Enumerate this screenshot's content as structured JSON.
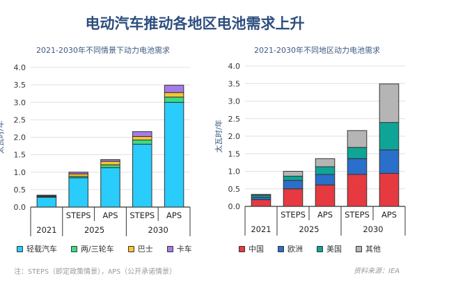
{
  "title": "电动汽车推动各地区电池需求上升",
  "note": "注：STEPS（即定政策情景），APS（公开承诺情景）",
  "source": "资料来源：IEA",
  "chart_data": [
    {
      "type": "bar",
      "stacked": true,
      "title": "2021-2030年不同情景下动力电池需求",
      "ylabel": "太瓦时/年",
      "ylim": [
        0,
        4.0
      ],
      "yticks": [
        "0.0",
        "0.5",
        "1.0",
        "1.5",
        "2.0",
        "2.5",
        "3.0",
        "3.5",
        "4.0"
      ],
      "grid": true,
      "legend": "bottom",
      "categories": [
        {
          "sub": "",
          "group": "2021"
        },
        {
          "sub": "STEPS",
          "group": "2025"
        },
        {
          "sub": "APS",
          "group": "2025"
        },
        {
          "sub": "STEPS",
          "group": "2030"
        },
        {
          "sub": "APS",
          "group": "2030"
        }
      ],
      "groups": [
        "2021",
        "2025",
        "2030"
      ],
      "series": [
        {
          "name": "轻载汽车",
          "color": "#29ccfa",
          "values": [
            0.28,
            0.84,
            1.13,
            1.8,
            3.0
          ]
        },
        {
          "name": "两/三轮车",
          "color": "#3ddc84",
          "values": [
            0.02,
            0.04,
            0.08,
            0.12,
            0.15
          ]
        },
        {
          "name": "巴士",
          "color": "#f7c531",
          "values": [
            0.02,
            0.07,
            0.1,
            0.1,
            0.13
          ]
        },
        {
          "name": "卡车",
          "color": "#a57be8",
          "values": [
            0.02,
            0.05,
            0.05,
            0.14,
            0.21
          ]
        }
      ]
    },
    {
      "type": "bar",
      "stacked": true,
      "title": "2021-2030年不同地区动力电池需求",
      "ylabel": "太瓦时/年",
      "ylim": [
        0,
        4.0
      ],
      "yticks": [
        "0.0",
        "0.5",
        "1.0",
        "1.5",
        "2.0",
        "2.5",
        "3.0",
        "3.5",
        "4.0"
      ],
      "grid": true,
      "legend": "bottom",
      "categories": [
        {
          "sub": "",
          "group": "2021"
        },
        {
          "sub": "STEPS",
          "group": "2025"
        },
        {
          "sub": "APS",
          "group": "2025"
        },
        {
          "sub": "STEPS",
          "group": "2030"
        },
        {
          "sub": "APS",
          "group": "2030"
        }
      ],
      "groups": [
        "2021",
        "2025",
        "2030"
      ],
      "series": [
        {
          "name": "中国",
          "color": "#e63a40",
          "values": [
            0.19,
            0.5,
            0.61,
            0.91,
            0.94
          ]
        },
        {
          "name": "欧洲",
          "color": "#2a6fc9",
          "values": [
            0.07,
            0.24,
            0.3,
            0.45,
            0.67
          ]
        },
        {
          "name": "美国",
          "color": "#0ea596",
          "values": [
            0.06,
            0.12,
            0.22,
            0.32,
            0.78
          ]
        },
        {
          "name": "其他",
          "color": "#b5b5b5",
          "values": [
            0.02,
            0.14,
            0.23,
            0.48,
            1.1
          ]
        }
      ]
    }
  ]
}
